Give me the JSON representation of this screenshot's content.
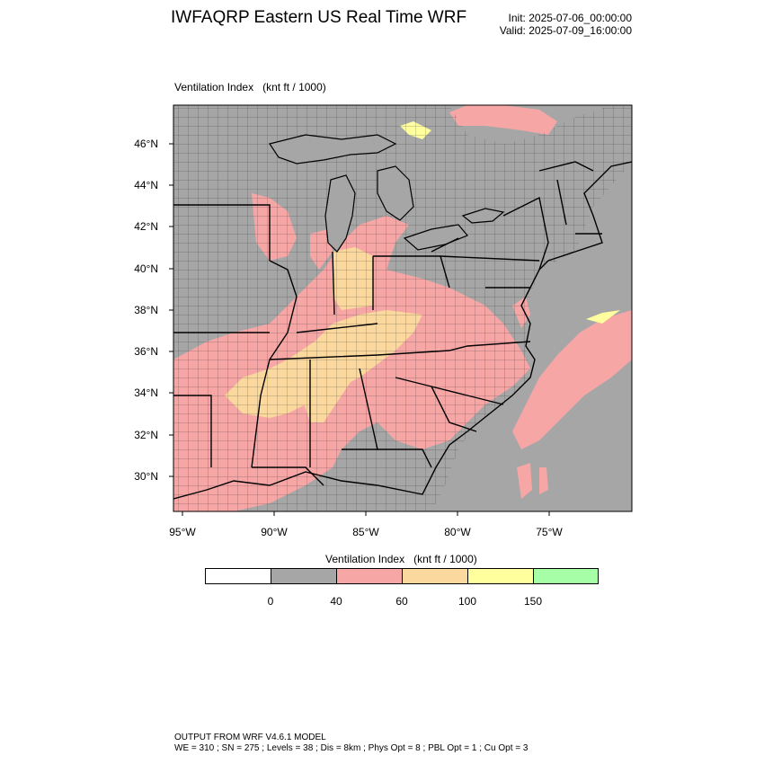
{
  "header": {
    "title": "IWFAQRP Eastern US Real Time WRF",
    "init": "Init: 2025-07-06_00:00:00",
    "valid": "Valid: 2025-07-09_16:00:00"
  },
  "map": {
    "field_name": "Ventilation Index",
    "units": "(knt ft / 1000)",
    "lat_ticks": [
      "46°N",
      "44°N",
      "42°N",
      "40°N",
      "38°N",
      "36°N",
      "34°N",
      "32°N",
      "30°N"
    ],
    "lon_ticks": [
      "95°W",
      "90°W",
      "85°W",
      "80°W",
      "75°W"
    ],
    "colors": {
      "background_grey": "#a6a6a6",
      "low_pink": "#f7a6a6",
      "mid_tan": "#fbd89e",
      "high_yellow": "#ffff9e",
      "very_high_green": "#a6ffa6"
    }
  },
  "legend": {
    "title": "Ventilation Index",
    "units": "(knt ft / 1000)",
    "bins": [
      {
        "color": "#ffffff"
      },
      {
        "color": "#a6a6a6"
      },
      {
        "color": "#f7a6a6"
      },
      {
        "color": "#fbd89e"
      },
      {
        "color": "#ffff9e"
      },
      {
        "color": "#a6ffa6"
      }
    ],
    "ticks": [
      "0",
      "40",
      "60",
      "100",
      "150"
    ]
  },
  "footer": {
    "line1": "OUTPUT FROM WRF V4.6.1 MODEL",
    "line2": "WE = 310 ; SN = 275 ; Levels = 38 ; Dis = 8km ; Phys Opt = 8 ; PBL Opt = 1 ; Cu Opt = 3"
  }
}
